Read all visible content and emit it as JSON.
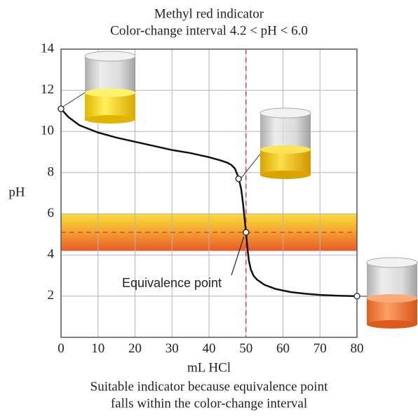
{
  "chart_data": {
    "type": "line",
    "title": "Methyl red indicator",
    "subtitle": "Color-change interval 4.2 < pH < 6.0",
    "xlabel": "mL HCl",
    "ylabel": "pH",
    "caption": [
      "Suitable indicator because equivalence point",
      "falls within the color-change interval"
    ],
    "x": [
      0,
      2,
      5,
      10,
      15,
      20,
      25,
      30,
      35,
      40,
      43,
      45,
      46,
      47,
      48,
      48.7,
      49.2,
      49.6,
      50,
      50.4,
      50.8,
      51.3,
      52,
      53,
      55,
      58,
      62,
      66,
      70,
      75,
      80
    ],
    "values": [
      11.1,
      10.7,
      10.3,
      9.95,
      9.7,
      9.5,
      9.3,
      9.1,
      8.95,
      8.75,
      8.6,
      8.48,
      8.38,
      8.2,
      7.75,
      7.2,
      6.5,
      5.8,
      5.1,
      4.3,
      3.7,
      3.3,
      3.0,
      2.8,
      2.55,
      2.35,
      2.2,
      2.12,
      2.06,
      2.02,
      2.0
    ],
    "color": "#111111",
    "markers": {
      "x": [
        0,
        48,
        50,
        80
      ],
      "values": [
        11.1,
        7.7,
        5.1,
        2.0
      ]
    },
    "interval": [
      4.2,
      6.0
    ],
    "reference": {
      "x": 50,
      "y": 5.1,
      "color": "#e0405a"
    },
    "annotation": "Equivalence point",
    "xlim": [
      0,
      80
    ],
    "ylim": [
      0,
      14
    ],
    "xticks": [
      0,
      10,
      20,
      30,
      40,
      50,
      60,
      70,
      80
    ],
    "yticks": [
      2,
      4,
      6,
      8,
      10,
      12,
      14
    ],
    "grid": true
  }
}
